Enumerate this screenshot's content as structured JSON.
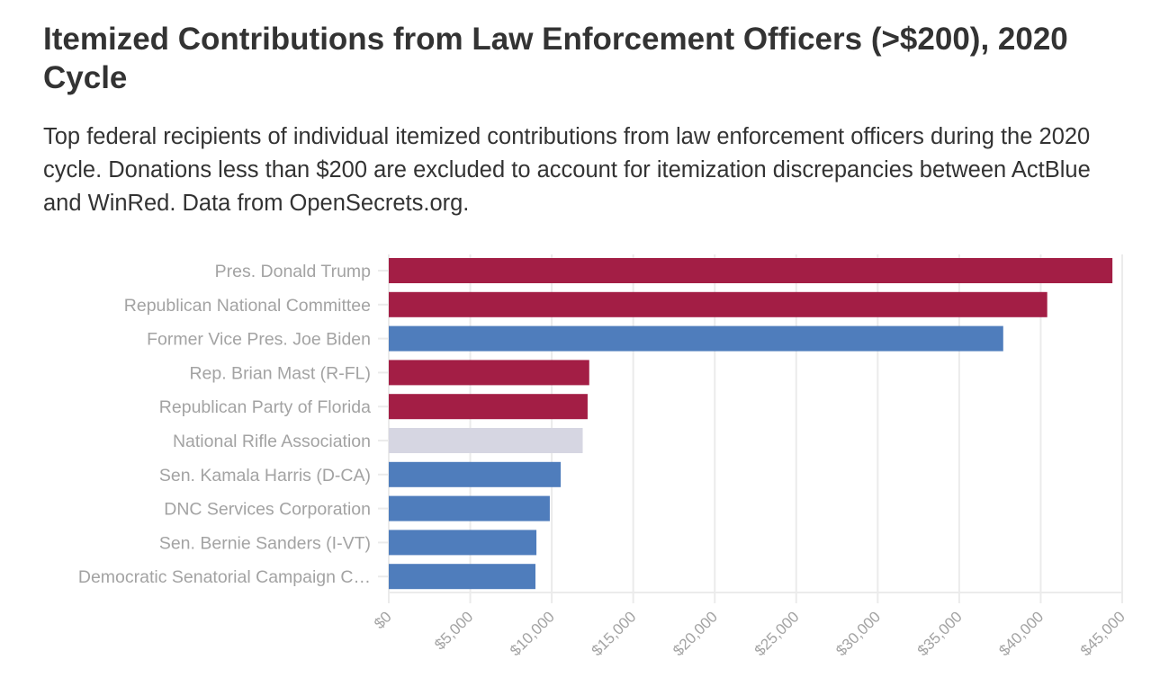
{
  "header": {
    "title": "Itemized Contributions from Law Enforcement Officers (>$200), 2020 Cycle",
    "subtitle": "Top federal recipients of individual itemized contributions from law enforcement officers during the 2020 cycle. Donations less than $200 are excluded to account for itemization discrepancies between ActBlue and WinRed. Data from OpenSecrets.org."
  },
  "colors": {
    "republican": "#A31E45",
    "democratic": "#4F7DBC",
    "other": "#D6D6E2",
    "grid": "#EBEBEB",
    "label": "#A3A3A3"
  },
  "chart_data": {
    "type": "bar",
    "orientation": "horizontal",
    "title": "Itemized Contributions from Law Enforcement Officers (>$200), 2020 Cycle",
    "xlabel": "",
    "ylabel": "",
    "xlim": [
      0,
      45000
    ],
    "grid": true,
    "x_ticks": [
      0,
      5000,
      10000,
      15000,
      20000,
      25000,
      30000,
      35000,
      40000,
      45000
    ],
    "x_tick_labels": [
      "$0",
      "$5,000",
      "$10,000",
      "$15,000",
      "$20,000",
      "$25,000",
      "$30,000",
      "$35,000",
      "$40,000",
      "$45,000"
    ],
    "categories": [
      "Pres. Donald Trump",
      "Republican National Committee",
      "Former Vice Pres. Joe Biden",
      "Rep. Brian Mast (R-FL)",
      "Republican Party of Florida",
      "National Rifle Association",
      "Sen. Kamala Harris (D-CA)",
      "DNC Services Corporation",
      "Sen. Bernie Sanders (I-VT)",
      "Democratic Senatorial Campaign C…"
    ],
    "values": [
      44400,
      40400,
      37700,
      12300,
      12200,
      11900,
      10550,
      9880,
      9060,
      9000
    ],
    "party": [
      "republican",
      "republican",
      "democratic",
      "republican",
      "republican",
      "other",
      "democratic",
      "democratic",
      "democratic",
      "democratic"
    ]
  }
}
